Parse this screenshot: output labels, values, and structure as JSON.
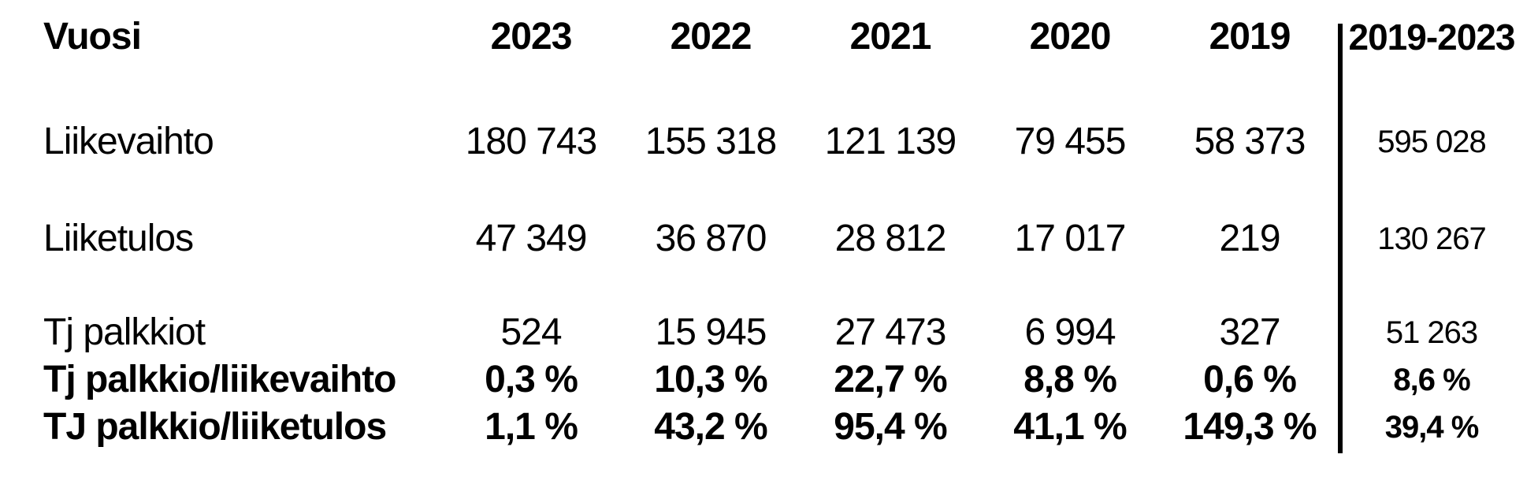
{
  "table": {
    "columns": [
      "Vuosi",
      "2023",
      "2022",
      "2021",
      "2020",
      "2019",
      "2019-2023"
    ],
    "rows": [
      {
        "label": "Liikevaihto",
        "values": [
          "180 743",
          "155 318",
          "121 139",
          "79 455",
          "58 373",
          "595 028"
        ]
      },
      {
        "label": "Liiketulos",
        "values": [
          "47 349",
          "36 870",
          "28 812",
          "17 017",
          "219",
          "130 267"
        ]
      },
      {
        "label": "Tj palkkiot",
        "values": [
          "524",
          "15 945",
          "27 473",
          "6 994",
          "327",
          "51 263"
        ]
      },
      {
        "label": "Tj palkkio/liikevaihto",
        "values": [
          "0,3 %",
          "10,3 %",
          "22,7 %",
          "8,8 %",
          "0,6 %",
          "8,6 %"
        ]
      },
      {
        "label": "TJ palkkio/liiketulos",
        "values": [
          "1,1 %",
          "43,2 %",
          "95,4 %",
          "41,1 %",
          "149,3 %",
          "39,4 %"
        ]
      }
    ]
  },
  "colors": {
    "background": "#ffffff",
    "text": "#000000",
    "divider": "#000000"
  }
}
